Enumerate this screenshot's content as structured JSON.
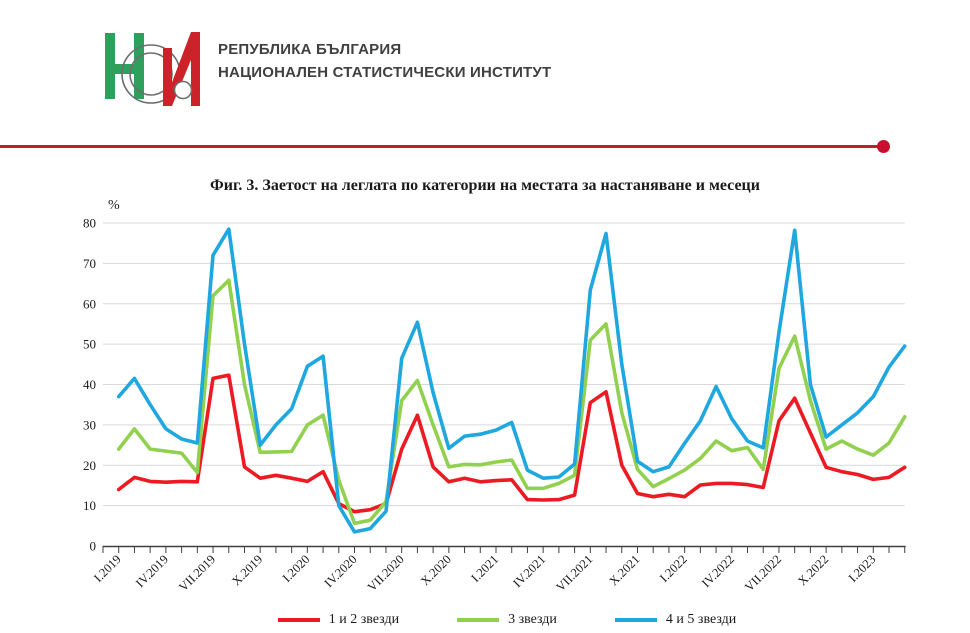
{
  "header": {
    "logo_name": "НСИ",
    "org_line1": "РЕПУБЛИКА БЪЛГАРИЯ",
    "org_line2": "НАЦИОНАЛЕН СТАТИСТИЧЕСКИ ИНСТИТУТ",
    "logo_colors": {
      "green": "#2FA05C",
      "red": "#CC2229",
      "outline": "#6D6E71"
    },
    "divider_color": "#BE1E2D"
  },
  "chart_data": {
    "type": "line",
    "title": "Фиг. 3. Заетост на леглата по категории на местата за настаняване и месеци",
    "ylabel": "%",
    "xlabel": "",
    "ylim": [
      0,
      80
    ],
    "y_ticks": [
      0,
      10,
      20,
      30,
      40,
      50,
      60,
      70,
      80
    ],
    "grid": true,
    "legend_position": "bottom",
    "n_points": 51,
    "months_per_label": 3,
    "x_first_month": "I.2019",
    "x_last_month": "III.2023",
    "x_tick_labels": [
      "I.2019",
      "IV.2019",
      "VII.2019",
      "X.2019",
      "I.2020",
      "IV.2020",
      "VII.2020",
      "X.2020",
      "I.2021",
      "IV.2021",
      "VII.2021",
      "X.2021",
      "I.2022",
      "IV.2022",
      "VII.2022",
      "X.2022",
      "I.2023"
    ],
    "series": [
      {
        "name": "1 и 2 звезди",
        "color": "#EC1B23",
        "values": [
          14,
          17,
          16,
          15.8,
          16,
          15.9,
          41.5,
          42.3,
          19.6,
          16.8,
          17.5,
          16.8,
          16,
          18.4,
          10.5,
          8.5,
          9,
          10.5,
          24,
          32.4,
          19.6,
          15.9,
          16.8,
          15.9,
          16.2,
          16.4,
          11.5,
          11.4,
          11.5,
          12.6,
          35.5,
          38.2,
          20,
          13,
          12.2,
          12.8,
          12.2,
          15.1,
          15.5,
          15.5,
          15.2,
          14.5,
          31,
          36.6,
          28,
          19.5,
          18.4,
          17.7,
          16.5,
          17,
          19.5
        ]
      },
      {
        "name": "3 звезди",
        "color": "#92D050",
        "values": [
          24,
          29,
          24,
          23.5,
          23,
          18.2,
          62,
          65.8,
          40,
          23.2,
          23.3,
          23.4,
          30,
          32.4,
          16.3,
          5.6,
          6.4,
          11,
          36,
          41,
          30,
          19.6,
          20.2,
          20.1,
          20.8,
          21.3,
          14.3,
          14.3,
          15.5,
          17.5,
          51,
          55,
          33,
          19,
          14.7,
          16.7,
          18.8,
          21.7,
          26,
          23.6,
          24.4,
          19,
          44,
          52,
          36,
          24,
          26,
          24,
          22.5,
          25.5,
          32
        ]
      },
      {
        "name": "4 и 5 звезди",
        "color": "#1FA7DF",
        "values": [
          37,
          41.5,
          35,
          29,
          26.5,
          25.5,
          72,
          78.5,
          50,
          25,
          30,
          34,
          44.5,
          47,
          10,
          3.5,
          4.3,
          8.6,
          46.5,
          55.4,
          38,
          24.2,
          27.2,
          27.7,
          28.7,
          30.6,
          18.8,
          16.8,
          17.1,
          20.3,
          63.4,
          77.4,
          45,
          21,
          18.4,
          19.6,
          25.4,
          31,
          39.5,
          31.5,
          26,
          24.3,
          53,
          78.2,
          40,
          27,
          30,
          33,
          37,
          44.3,
          49.5
        ]
      }
    ]
  }
}
